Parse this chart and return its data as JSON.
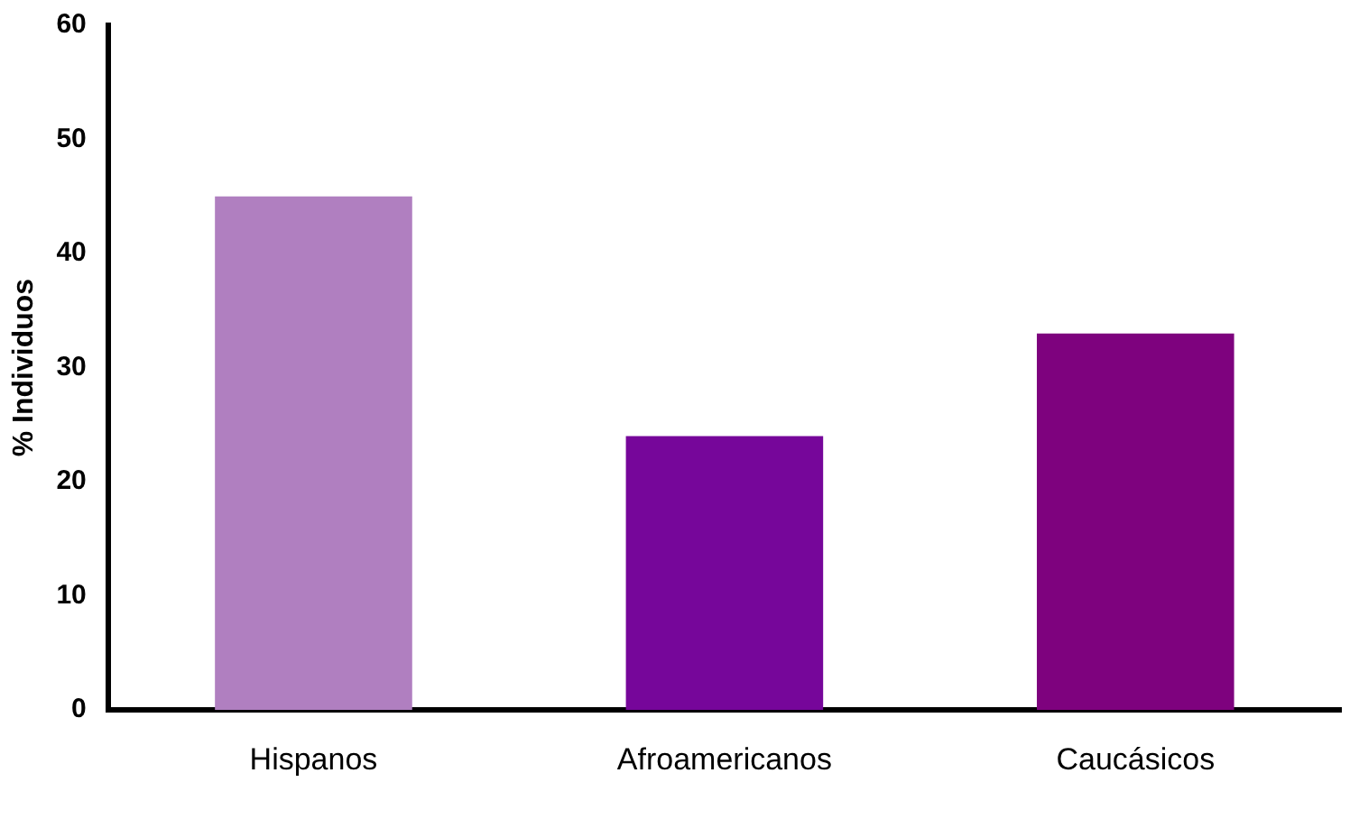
{
  "chart_data": {
    "type": "bar",
    "ylabel": "% Individuos",
    "categories": [
      "Hispanos",
      "Afroamericanos",
      "Caucásicos"
    ],
    "values": [
      45,
      24,
      33
    ],
    "colors": [
      "#b07fc0",
      "#76069a",
      "#7e027e"
    ],
    "ylim": [
      0,
      60
    ],
    "yticks": [
      0,
      10,
      20,
      30,
      40,
      50,
      60
    ],
    "grid": false,
    "legend": false
  }
}
